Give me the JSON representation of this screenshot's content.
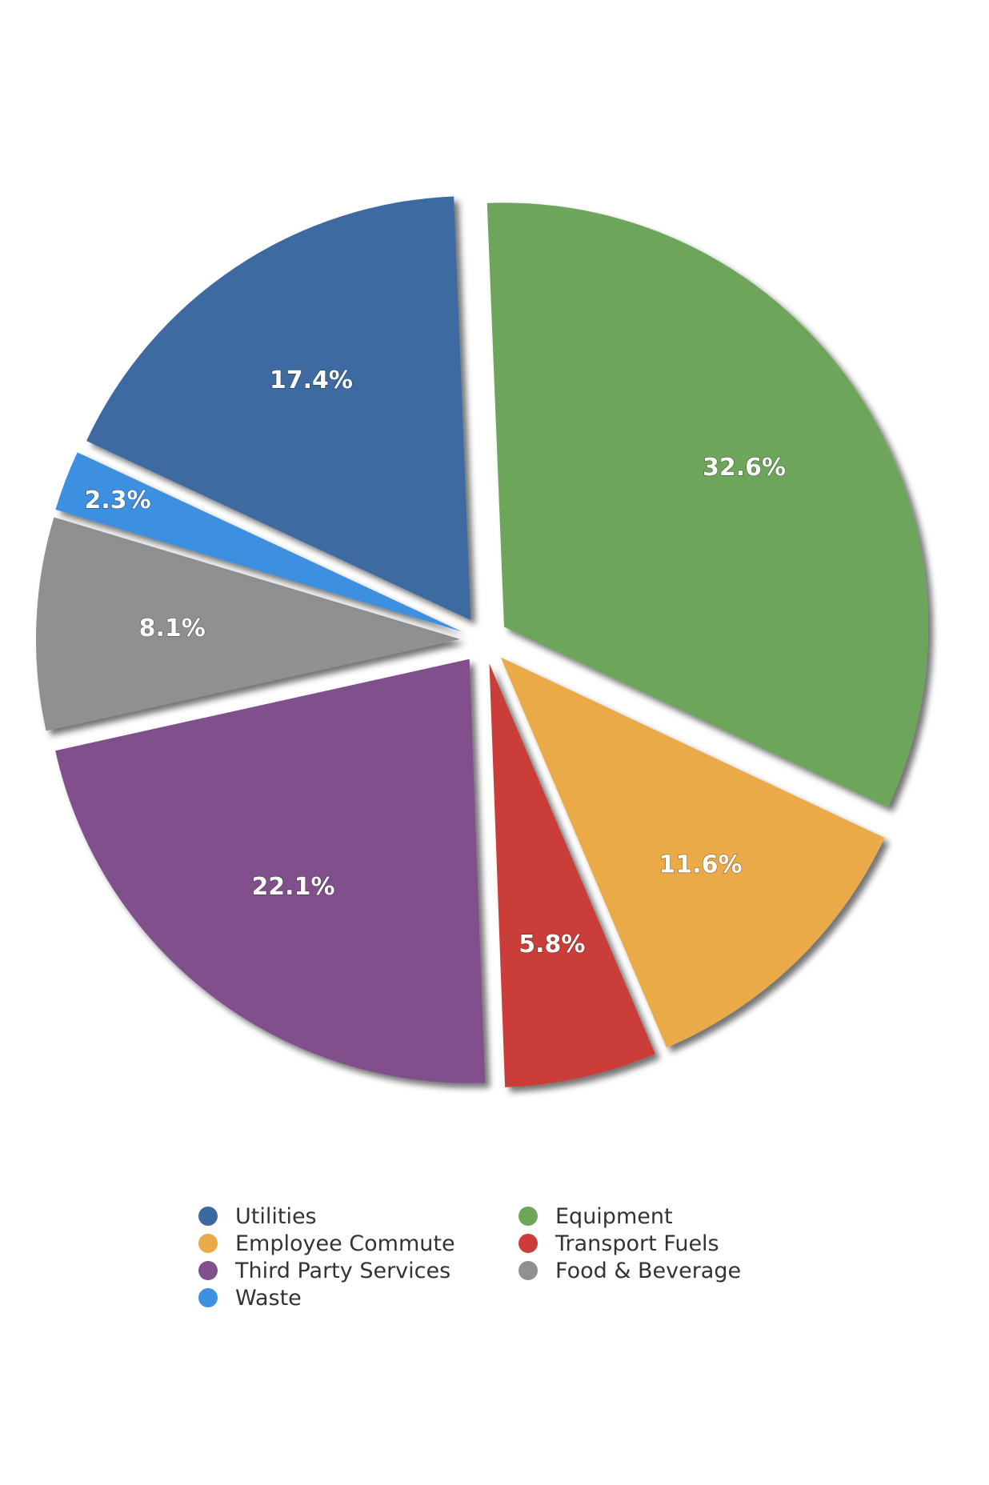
{
  "chart_data": {
    "type": "pie",
    "title": "",
    "legend_position": "bottom",
    "slices": [
      {
        "name": "Utilities",
        "value": 17.4,
        "label": "17.4%",
        "color": "#3c6aa0"
      },
      {
        "name": "Equipment",
        "value": 32.6,
        "label": "32.6%",
        "color": "#6da55a"
      },
      {
        "name": "Employee Commute",
        "value": 11.6,
        "label": "11.6%",
        "color": "#e9aa47"
      },
      {
        "name": "Transport Fuels",
        "value": 5.8,
        "label": "5.8%",
        "color": "#cb3d38"
      },
      {
        "name": "Third Party Services",
        "value": 22.1,
        "label": "22.1%",
        "color": "#80508c"
      },
      {
        "name": "Food & Beverage",
        "value": 8.1,
        "label": "8.1%",
        "color": "#8e9091"
      },
      {
        "name": "Waste",
        "value": 2.3,
        "label": "2.3%",
        "color": "#3d8fe0"
      }
    ],
    "legend_order": [
      "Utilities",
      "Equipment",
      "Employee Commute",
      "Transport Fuels",
      "Third Party Services",
      "Food & Beverage",
      "Waste"
    ]
  }
}
